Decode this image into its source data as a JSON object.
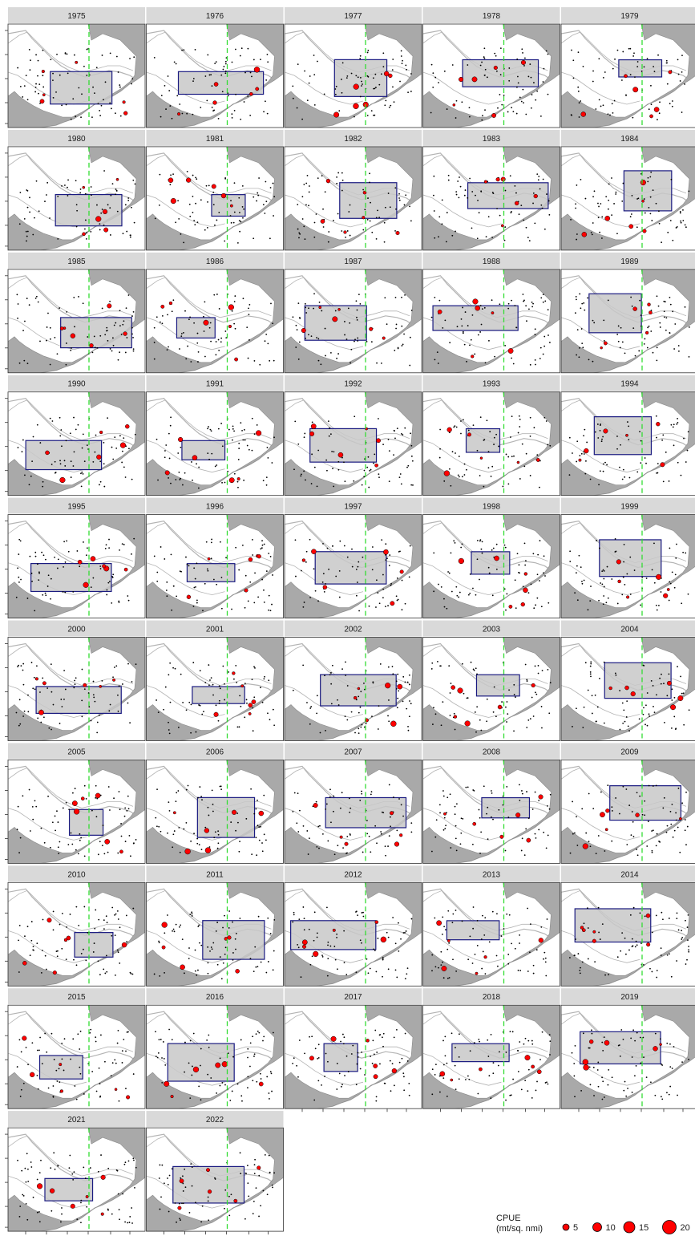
{
  "chart_data": {
    "type": "scatter",
    "facet_by": "year",
    "panels": [
      {
        "year": "1975"
      },
      {
        "year": "1976"
      },
      {
        "year": "1977"
      },
      {
        "year": "1978"
      },
      {
        "year": "1979"
      },
      {
        "year": "1980"
      },
      {
        "year": "1981"
      },
      {
        "year": "1982"
      },
      {
        "year": "1983"
      },
      {
        "year": "1984"
      },
      {
        "year": "1985"
      },
      {
        "year": "1986"
      },
      {
        "year": "1987"
      },
      {
        "year": "1988"
      },
      {
        "year": "1989"
      },
      {
        "year": "1990"
      },
      {
        "year": "1991"
      },
      {
        "year": "1992"
      },
      {
        "year": "1993"
      },
      {
        "year": "1994"
      },
      {
        "year": "1995"
      },
      {
        "year": "1996"
      },
      {
        "year": "1997"
      },
      {
        "year": "1998"
      },
      {
        "year": "1999"
      },
      {
        "year": "2000"
      },
      {
        "year": "2001"
      },
      {
        "year": "2002"
      },
      {
        "year": "2003"
      },
      {
        "year": "2004"
      },
      {
        "year": "2005"
      },
      {
        "year": "2006"
      },
      {
        "year": "2007"
      },
      {
        "year": "2008"
      },
      {
        "year": "2009"
      },
      {
        "year": "2010"
      },
      {
        "year": "2011"
      },
      {
        "year": "2012"
      },
      {
        "year": "2013"
      },
      {
        "year": "2014"
      },
      {
        "year": "2015"
      },
      {
        "year": "2016"
      },
      {
        "year": "2017"
      },
      {
        "year": "2018"
      },
      {
        "year": "2019"
      },
      {
        "year": "2021"
      },
      {
        "year": "2022"
      }
    ],
    "legend": {
      "title_line1": "CPUE",
      "title_line2": "(mt/sq. nmi)",
      "sizes": [
        5,
        10,
        15,
        20
      ],
      "labels": [
        "5",
        "10",
        "15",
        "20"
      ],
      "placement": "bottom-right"
    },
    "colors": {
      "point_fill": "#ff0000",
      "point_stroke": "#000000",
      "polygon_fill": "#c8c8c8",
      "polygon_stroke": "#1a1a80",
      "land": "#a9a9a9",
      "bathymetry": "#b4b4b4",
      "reference_line": "#33dd33",
      "strip_fill": "#d9d9d9",
      "panel_border": "#333333"
    }
  }
}
